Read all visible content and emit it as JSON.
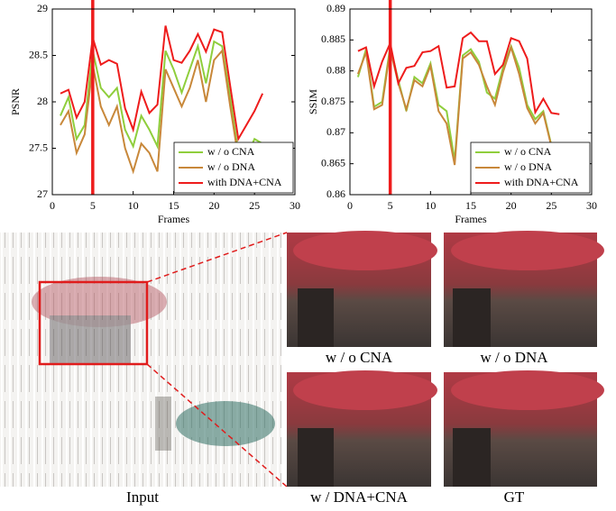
{
  "chart_data": [
    {
      "type": "line",
      "x_label": "Frames",
      "y_label": "PSNR",
      "x": [
        1,
        2,
        3,
        4,
        5,
        6,
        7,
        8,
        9,
        10,
        11,
        12,
        13,
        14,
        15,
        16,
        17,
        18,
        19,
        20,
        21,
        22,
        23,
        24,
        25,
        26
      ],
      "xlim": [
        0,
        30
      ],
      "xticks": [
        0,
        5,
        10,
        15,
        20,
        25,
        30
      ],
      "ylim": [
        27,
        29
      ],
      "yticks": [
        27,
        27.5,
        28,
        28.5,
        29
      ],
      "highlight_x": 5,
      "legend": "lower right",
      "series": [
        {
          "name": "w / o CNA",
          "color": "#8fce3c",
          "values": [
            27.85,
            28.05,
            27.6,
            27.75,
            28.55,
            28.15,
            28.05,
            28.15,
            27.7,
            27.52,
            27.85,
            27.7,
            27.52,
            28.55,
            28.35,
            28.1,
            28.35,
            28.6,
            28.2,
            28.65,
            28.6,
            28.05,
            27.45,
            27.4,
            27.6,
            27.55
          ]
        },
        {
          "name": "w / o DNA",
          "color": "#c8883a",
          "values": [
            27.75,
            27.9,
            27.45,
            27.65,
            28.4,
            27.95,
            27.75,
            27.95,
            27.5,
            27.25,
            27.55,
            27.45,
            27.25,
            28.35,
            28.15,
            27.95,
            28.15,
            28.45,
            28.0,
            28.45,
            28.55,
            27.95,
            27.4,
            27.35,
            27.5,
            27.45
          ]
        },
        {
          "name": "with DNA+CNA",
          "color": "#ee1c1c",
          "values": [
            28.09,
            28.13,
            27.83,
            28.0,
            28.69,
            28.4,
            28.45,
            28.41,
            27.93,
            27.7,
            28.11,
            27.88,
            27.97,
            28.82,
            28.45,
            28.42,
            28.55,
            28.73,
            28.54,
            28.78,
            28.75,
            28.17,
            27.6,
            27.75,
            27.9,
            28.09
          ]
        }
      ]
    },
    {
      "type": "line",
      "x_label": "Frames",
      "y_label": "SSIM",
      "x": [
        1,
        2,
        3,
        4,
        5,
        6,
        7,
        8,
        9,
        10,
        11,
        12,
        13,
        14,
        15,
        16,
        17,
        18,
        19,
        20,
        21,
        22,
        23,
        24,
        25,
        26
      ],
      "xlim": [
        0,
        30
      ],
      "xticks": [
        0,
        5,
        10,
        15,
        20,
        25,
        30
      ],
      "ylim": [
        0.86,
        0.89
      ],
      "yticks": [
        0.86,
        0.865,
        0.87,
        0.875,
        0.88,
        0.885,
        0.89
      ],
      "highlight_x": 5,
      "legend": "lower right",
      "series": [
        {
          "name": "w / o CNA",
          "color": "#8fce3c",
          "values": [
            0.879,
            0.8835,
            0.8742,
            0.875,
            0.884,
            0.8785,
            0.8735,
            0.879,
            0.878,
            0.8812,
            0.8745,
            0.8735,
            0.8655,
            0.8825,
            0.8835,
            0.8815,
            0.8765,
            0.8755,
            0.8805,
            0.884,
            0.8805,
            0.8745,
            0.8722,
            0.8735,
            0.868,
            0.8665
          ]
        },
        {
          "name": "w / o DNA",
          "color": "#c8883a",
          "values": [
            0.8795,
            0.883,
            0.8738,
            0.8745,
            0.8835,
            0.878,
            0.8738,
            0.8785,
            0.8775,
            0.8808,
            0.8735,
            0.8715,
            0.8648,
            0.882,
            0.883,
            0.881,
            0.8775,
            0.8745,
            0.8798,
            0.8838,
            0.8795,
            0.874,
            0.8715,
            0.8732,
            0.8678,
            0.866
          ]
        },
        {
          "name": "with DNA+CNA",
          "color": "#ee1c1c",
          "values": [
            0.8832,
            0.8838,
            0.8775,
            0.8815,
            0.8845,
            0.878,
            0.8805,
            0.8808,
            0.883,
            0.8832,
            0.884,
            0.8773,
            0.8775,
            0.8853,
            0.8862,
            0.8848,
            0.8848,
            0.8795,
            0.881,
            0.8853,
            0.8848,
            0.882,
            0.8733,
            0.8755,
            0.8732,
            0.873
          ]
        }
      ]
    }
  ],
  "images": {
    "input": "Input",
    "panels": [
      "w / o  CNA",
      "w / o  DNA",
      "w / DNA+CNA",
      "GT"
    ]
  }
}
